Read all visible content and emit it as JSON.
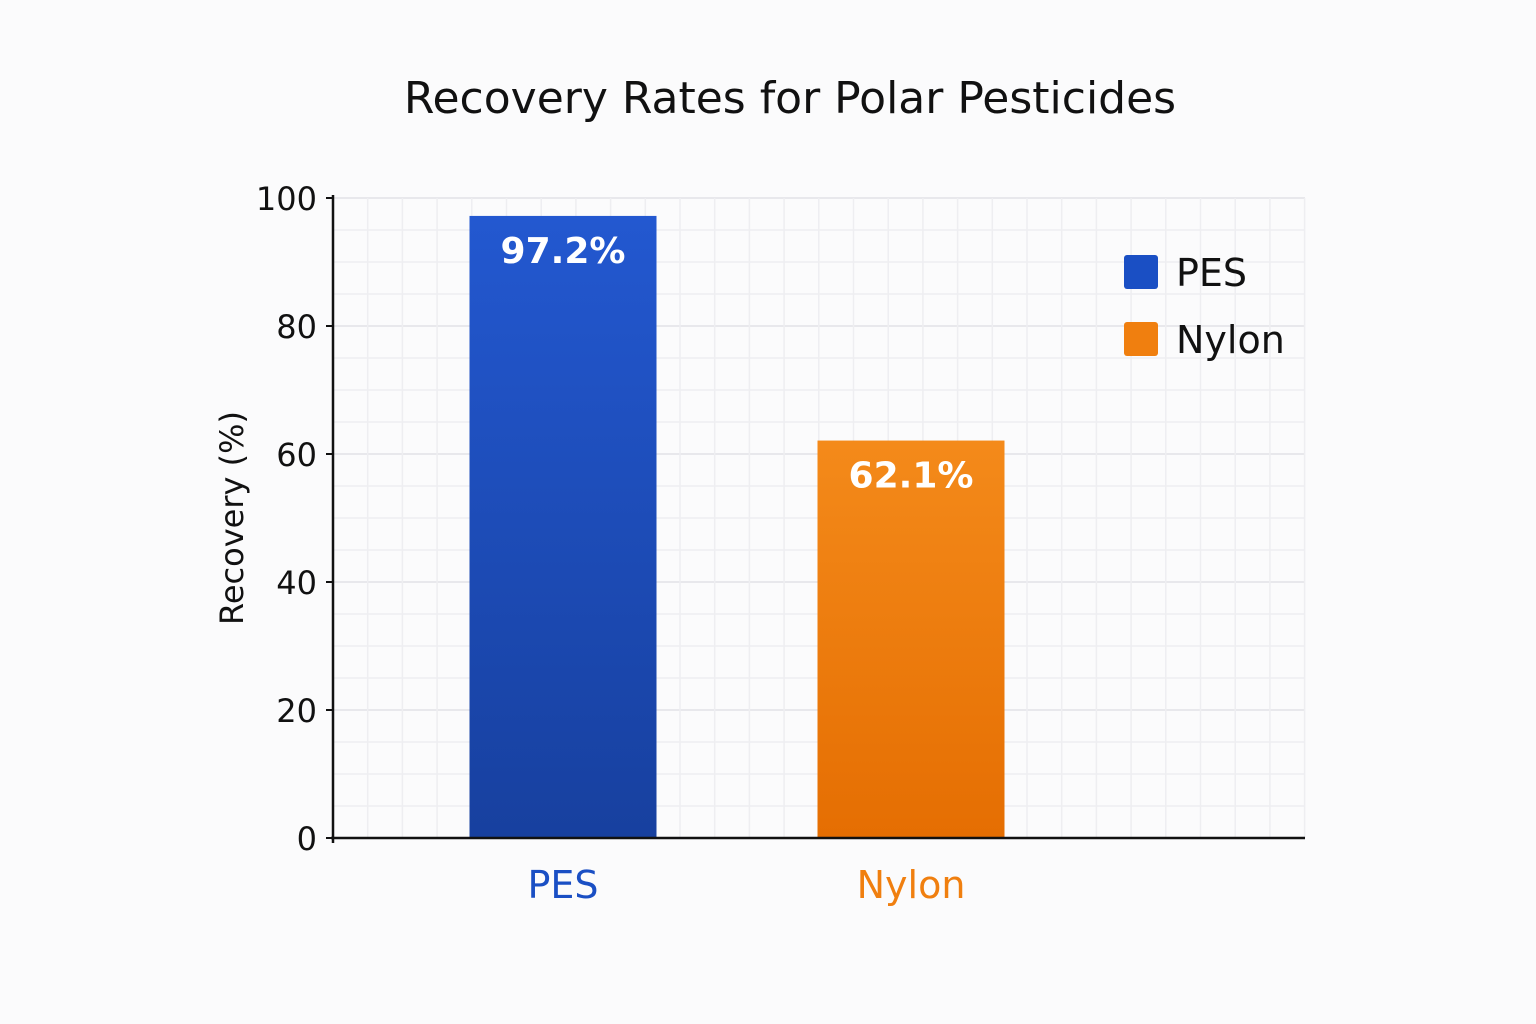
{
  "chart_data": {
    "type": "bar",
    "title": "Recovery Rates for Polar Pesticides",
    "xlabel": "",
    "ylabel": "Recovery (%)",
    "ylim": [
      0,
      100
    ],
    "yticks": [
      "0",
      "20",
      "40",
      "60",
      "80",
      "100"
    ],
    "categories": [
      "PES",
      "Nylon"
    ],
    "values": [
      97.2,
      62.1
    ],
    "data_labels": [
      "97.2%",
      "62.1%"
    ],
    "colors": [
      "#1a4fc4",
      "#f07f0f"
    ],
    "legend": {
      "placement": "top-right",
      "entries": [
        "PES",
        "Nylon"
      ]
    },
    "grid": true
  }
}
